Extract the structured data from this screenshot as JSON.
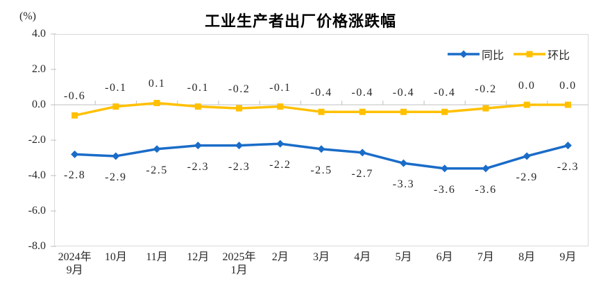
{
  "chart_data": {
    "type": "line",
    "title": "工业生产者出厂价格涨跌幅",
    "ylabel": "(%)",
    "xlabel": "",
    "ylim": [
      -8.0,
      4.0
    ],
    "ytick_step": 2.0,
    "yticks": [
      "4.0",
      "2.0",
      "0.0",
      "-2.0",
      "-4.0",
      "-6.0",
      "-8.0"
    ],
    "grid": false,
    "legend_position": "top-right",
    "categories": [
      "2024年\n9月",
      "10月",
      "11月",
      "12月",
      "2025年\n1月",
      "2月",
      "3月",
      "4月",
      "5月",
      "6月",
      "7月",
      "8月",
      "9月"
    ],
    "series": [
      {
        "name": "同比",
        "color": "#1a6cc8",
        "marker": "diamond",
        "label_position": "below",
        "values": [
          -2.8,
          -2.9,
          -2.5,
          -2.3,
          -2.3,
          -2.2,
          -2.5,
          -2.7,
          -3.3,
          -3.6,
          -3.6,
          -2.9,
          -2.3
        ]
      },
      {
        "name": "环比",
        "color": "#ffc000",
        "marker": "square",
        "label_position": "above",
        "values": [
          -0.6,
          -0.1,
          0.1,
          -0.1,
          -0.2,
          -0.1,
          -0.4,
          -0.4,
          -0.4,
          -0.4,
          -0.2,
          0.0,
          0.0
        ]
      }
    ],
    "colors": {
      "axis": "#bfbfbf",
      "plot_border": "#d9d9d9",
      "text": "#262626",
      "title": "#000000"
    }
  }
}
